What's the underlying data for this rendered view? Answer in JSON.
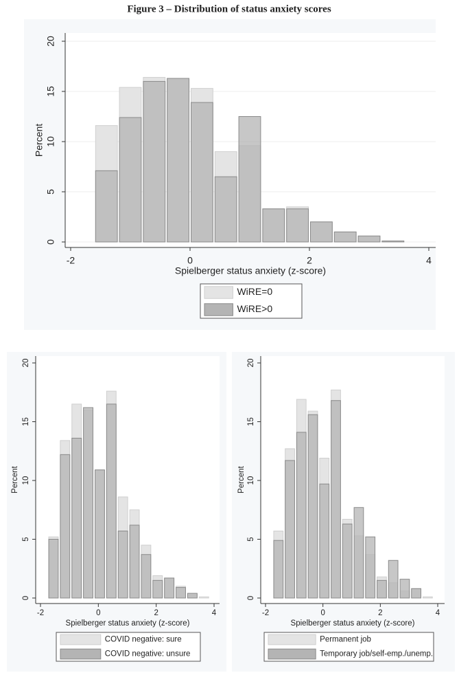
{
  "title": "Figure 3 – Distribution of status anxiety scores",
  "chart_data": [
    {
      "type": "histogram",
      "x_label": "Spielberger status anxiety (z-score)",
      "y_label": "Percent",
      "bins": [
        -1.6,
        -1.2,
        -0.8,
        -0.4,
        0,
        0.4,
        0.8,
        1.2,
        1.6,
        2.0,
        2.4,
        2.8,
        3.2,
        3.6
      ],
      "series": [
        {
          "name": "WiRE=0",
          "color": "#e4e4e4",
          "values": [
            11.6,
            15.4,
            16.4,
            16.3,
            15.3,
            9.0,
            9.6,
            3.3,
            3.5,
            2.0,
            1.0,
            0.5,
            0.1
          ]
        },
        {
          "name": "WiRE>0",
          "color": "#b4b4b4",
          "values": [
            7.1,
            12.4,
            16.0,
            16.3,
            13.9,
            6.5,
            12.5,
            3.3,
            3.3,
            2.0,
            1.0,
            0.6,
            0.1
          ]
        }
      ],
      "xlim": [
        -2,
        4
      ],
      "xticks": [
        -2,
        0,
        2,
        4
      ],
      "ylim": [
        0,
        20
      ],
      "yticks": [
        0,
        5,
        10,
        15,
        20
      ],
      "grid": true,
      "legend": "bottom"
    },
    {
      "type": "histogram",
      "x_label": "Spielberger status anxiety (z-score)",
      "y_label": "Percent",
      "bins": [
        -1.75,
        -1.35,
        -0.95,
        -0.55,
        -0.15,
        0.25,
        0.65,
        1.05,
        1.45,
        1.85,
        2.25,
        2.65,
        3.05,
        3.45,
        3.85
      ],
      "series": [
        {
          "name": "COVID negative: sure",
          "color": "#e4e4e4",
          "values": [
            5.2,
            13.4,
            16.5,
            16.0,
            10.9,
            17.6,
            8.6,
            7.5,
            4.5,
            1.9,
            1.7,
            1.0,
            0.3,
            0.1
          ]
        },
        {
          "name": "COVID negative: unsure",
          "color": "#b4b4b4",
          "values": [
            5.0,
            12.2,
            13.6,
            16.2,
            10.9,
            16.5,
            5.7,
            6.2,
            3.7,
            1.5,
            1.7,
            0.9,
            0.4,
            0.0
          ]
        }
      ],
      "xlim": [
        -2,
        4
      ],
      "xticks": [
        -2,
        0,
        2,
        4
      ],
      "ylim": [
        0,
        20
      ],
      "yticks": [
        0,
        5,
        10,
        15,
        20
      ],
      "grid": false,
      "legend": "bottom"
    },
    {
      "type": "histogram",
      "x_label": "Spielberger status anxiety (z-score)",
      "y_label": "Percent",
      "bins": [
        -1.75,
        -1.35,
        -0.95,
        -0.55,
        -0.15,
        0.25,
        0.65,
        1.05,
        1.45,
        1.85,
        2.25,
        2.65,
        3.05,
        3.45,
        3.85
      ],
      "series": [
        {
          "name": "Permanent job",
          "color": "#e4e4e4",
          "values": [
            5.7,
            12.7,
            16.9,
            15.9,
            11.9,
            17.7,
            6.7,
            5.3,
            3.7,
            1.8,
            1.3,
            0.6,
            0.8,
            0.1
          ]
        },
        {
          "name": "Temporary job/self-emp./unemp.",
          "color": "#b4b4b4",
          "values": [
            4.9,
            11.7,
            14.1,
            15.6,
            9.7,
            16.8,
            6.3,
            7.7,
            5.2,
            1.5,
            3.2,
            1.6,
            0.8,
            0.0
          ]
        }
      ],
      "xlim": [
        -2,
        4
      ],
      "xticks": [
        -2,
        0,
        2,
        4
      ],
      "ylim": [
        0,
        20
      ],
      "yticks": [
        0,
        5,
        10,
        15,
        20
      ],
      "grid": false,
      "legend": "bottom"
    }
  ]
}
